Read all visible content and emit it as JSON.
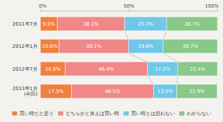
{
  "chart_data": {
    "type": "bar",
    "orientation": "horizontal",
    "stacked": true,
    "data_labels": true,
    "legend": "bottom",
    "grid": false,
    "categories": [
      "2011年7月",
      "2012年1月",
      "2012年7月",
      "2013年1月\n(今回)"
    ],
    "series": [
      {
        "name": "買い時だと思う",
        "color": "#f08040",
        "values": [
          9.5,
          10.6,
          14.0,
          17.5
        ],
        "value_labels": [
          "9.5%",
          "10.6%",
          "14.0%",
          "17.5%"
        ]
      },
      {
        "name": "どちらかと言えば買い時",
        "color": "#f08888",
        "values": [
          38.1,
          39.1,
          46.4,
          46.5
        ],
        "value_labels": [
          "38.1%",
          "39.1%",
          "46.4%",
          "46.5%"
        ]
      },
      {
        "name": "買い時とは思わない",
        "color": "#70c8e8",
        "values": [
          23.7,
          19.6,
          17.2,
          13.0
        ],
        "value_labels": [
          "23.7%",
          "19.6%",
          "17.2%",
          "13.0%"
        ]
      },
      {
        "name": "わからない",
        "color": "#88c888",
        "values": [
          28.7,
          30.7,
          22.4,
          22.9
        ],
        "value_labels": [
          "28.7%",
          "30.7%",
          "22.4%",
          "22.9%"
        ]
      }
    ],
    "xlim": [
      0,
      100
    ],
    "xticks": [
      {
        "value": 0,
        "label": "0%"
      },
      {
        "value": 50,
        "label": "50%"
      },
      {
        "value": 100,
        "label": "100%"
      }
    ]
  }
}
